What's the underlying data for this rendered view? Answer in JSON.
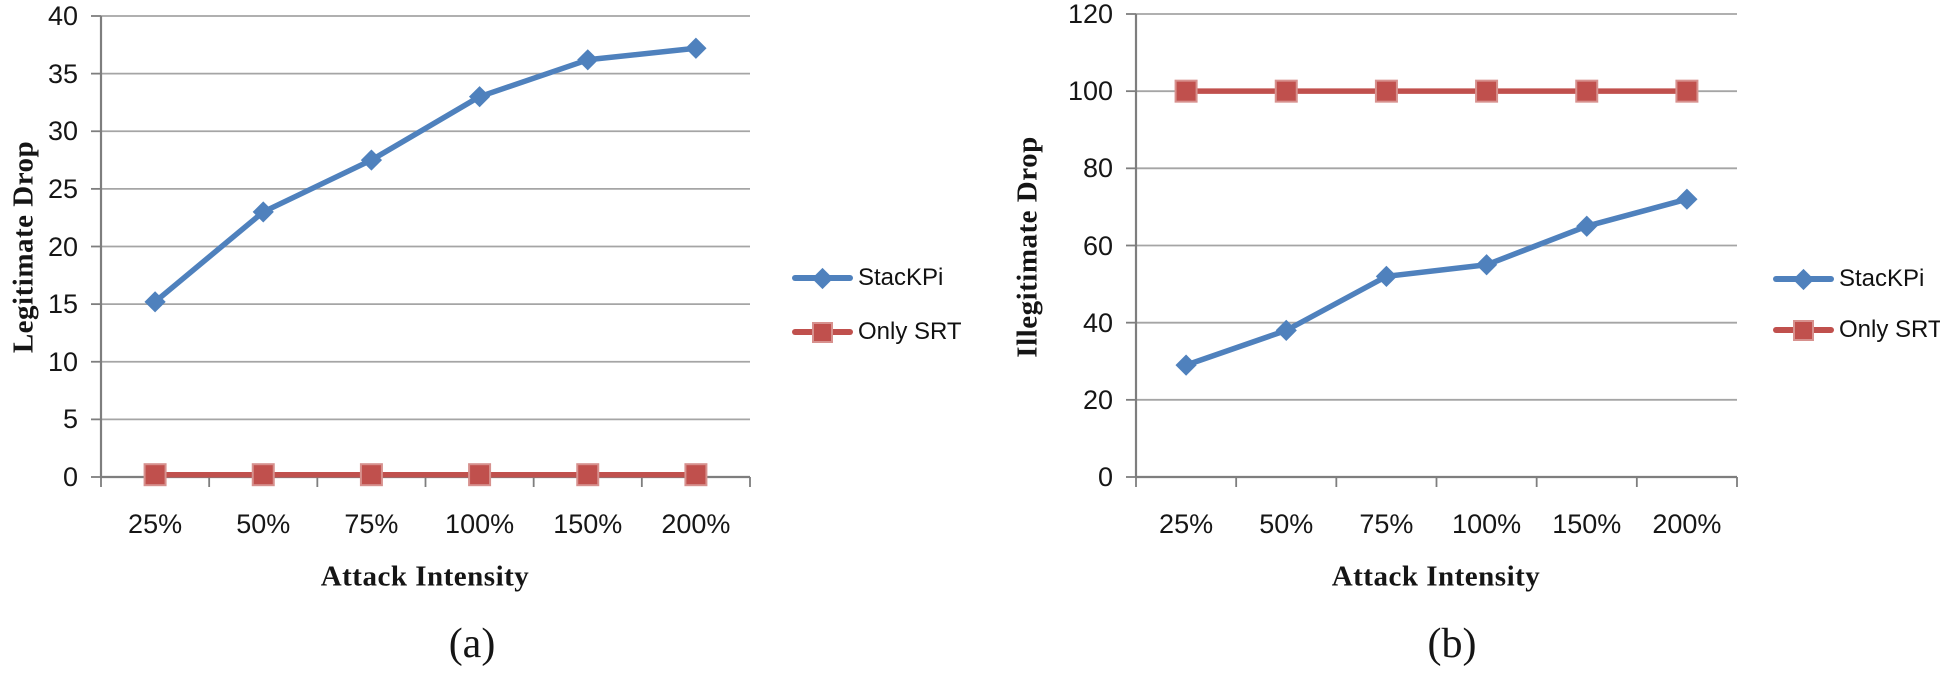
{
  "colors": {
    "series_blue": "#4F81BD",
    "series_red": "#C0504D",
    "red_marker_edge": "#D7918E",
    "gridline": "#A5A5A5",
    "axis_line": "#7E7E7E",
    "text": "#151515",
    "background": "#FFFFFF"
  },
  "chart_data": [
    {
      "type": "line",
      "panel": "(a)",
      "title": "",
      "xlabel": "Attack Intensity",
      "ylabel": "Legitimate Drop",
      "categories": [
        "25%",
        "50%",
        "75%",
        "100%",
        "150%",
        "200%"
      ],
      "ylim": [
        0,
        40
      ],
      "yticks": [
        0,
        5,
        10,
        15,
        20,
        25,
        30,
        35,
        40
      ],
      "grid": true,
      "legend_position": "right",
      "series": [
        {
          "name": "StacKPi",
          "color": "#4F81BD",
          "marker": "diamond",
          "values": [
            15.2,
            23,
            27.5,
            33,
            36.2,
            37.2
          ]
        },
        {
          "name": "Only SRT",
          "color": "#C0504D",
          "marker": "square",
          "values": [
            0.2,
            0.2,
            0.2,
            0.2,
            0.2,
            0.2
          ]
        }
      ]
    },
    {
      "type": "line",
      "panel": "(b)",
      "title": "",
      "xlabel": "Attack Intensity",
      "ylabel": "Illegitimate Drop",
      "categories": [
        "25%",
        "50%",
        "75%",
        "100%",
        "150%",
        "200%"
      ],
      "ylim": [
        0,
        120
      ],
      "yticks": [
        0,
        20,
        40,
        60,
        80,
        100,
        120
      ],
      "grid": true,
      "legend_position": "right",
      "series": [
        {
          "name": "StacKPi",
          "color": "#4F81BD",
          "marker": "diamond",
          "values": [
            29,
            38,
            52,
            55,
            65,
            72
          ]
        },
        {
          "name": "Only SRT",
          "color": "#C0504D",
          "marker": "square",
          "values": [
            100,
            100,
            100,
            100,
            100,
            100
          ]
        }
      ]
    }
  ]
}
